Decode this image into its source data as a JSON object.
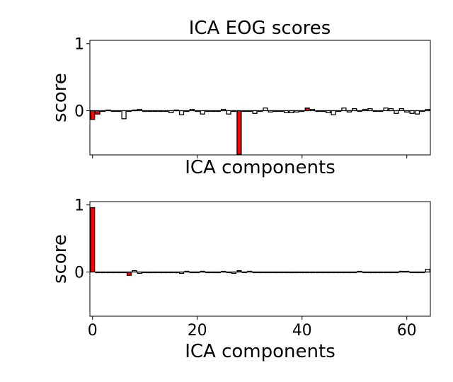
{
  "chart_data": [
    {
      "type": "bar",
      "title": "ICA EOG scores",
      "xlabel": "ICA components",
      "ylabel": "score",
      "xlim": [
        -0.5,
        64.5
      ],
      "ylim": [
        -0.66,
        1.05
      ],
      "yticks": [
        0,
        1
      ],
      "xticks": [
        0,
        20,
        40,
        60
      ],
      "show_xtick_labels": false,
      "bar_width": 0.8,
      "colors": {
        "excluded": "#ff0000",
        "normal": "#ffffff",
        "edge": "#000000"
      },
      "excluded": [
        0,
        1,
        28,
        41
      ],
      "values": [
        -0.13,
        -0.05,
        0.0,
        0.01,
        0.0,
        0.0,
        -0.12,
        0.0,
        0.01,
        0.02,
        0.0,
        0.0,
        0.0,
        0.0,
        0.0,
        -0.03,
        0.01,
        -0.06,
        0.0,
        0.02,
        0.0,
        -0.05,
        0.0,
        0.0,
        0.0,
        0.02,
        -0.05,
        0.0,
        -0.65,
        0.0,
        0.0,
        -0.04,
        0.0,
        0.04,
        -0.02,
        0.0,
        0.0,
        -0.03,
        -0.03,
        -0.02,
        0.0,
        0.04,
        0.02,
        0.0,
        0.0,
        -0.03,
        -0.06,
        0.0,
        0.04,
        -0.02,
        0.03,
        0.0,
        0.02,
        0.03,
        0.0,
        -0.01,
        0.04,
        0.03,
        -0.04,
        0.03,
        -0.02,
        -0.04,
        -0.05,
        -0.01,
        0.02
      ]
    },
    {
      "type": "bar",
      "title": "",
      "xlabel": "ICA components",
      "ylabel": "score",
      "xlim": [
        -0.5,
        64.5
      ],
      "ylim": [
        -0.66,
        1.05
      ],
      "yticks": [
        0,
        1
      ],
      "xticks": [
        0,
        20,
        40,
        60
      ],
      "show_xtick_labels": true,
      "bar_width": 0.8,
      "colors": {
        "excluded": "#ff0000",
        "normal": "#ffffff",
        "edge": "#000000"
      },
      "excluded": [
        0,
        7,
        28
      ],
      "values": [
        0.96,
        0.0,
        -0.01,
        0.0,
        -0.01,
        0.0,
        0.0,
        -0.05,
        0.02,
        -0.02,
        0.0,
        0.0,
        0.0,
        0.0,
        0.0,
        0.0,
        0.0,
        -0.02,
        0.01,
        -0.01,
        0.0,
        0.01,
        0.0,
        0.0,
        -0.01,
        0.01,
        0.0,
        -0.02,
        0.02,
        0.0,
        0.01,
        -0.01,
        0.0,
        0.0,
        0.0,
        0.0,
        0.0,
        0.0,
        0.0,
        -0.01,
        0.0,
        0.0,
        0.0,
        0.0,
        -0.01,
        0.0,
        0.0,
        0.0,
        0.0,
        0.0,
        0.0,
        0.01,
        0.0,
        0.0,
        0.0,
        0.0,
        0.0,
        0.0,
        0.0,
        0.01,
        0.01,
        -0.01,
        0.0,
        0.0,
        0.04
      ]
    }
  ]
}
